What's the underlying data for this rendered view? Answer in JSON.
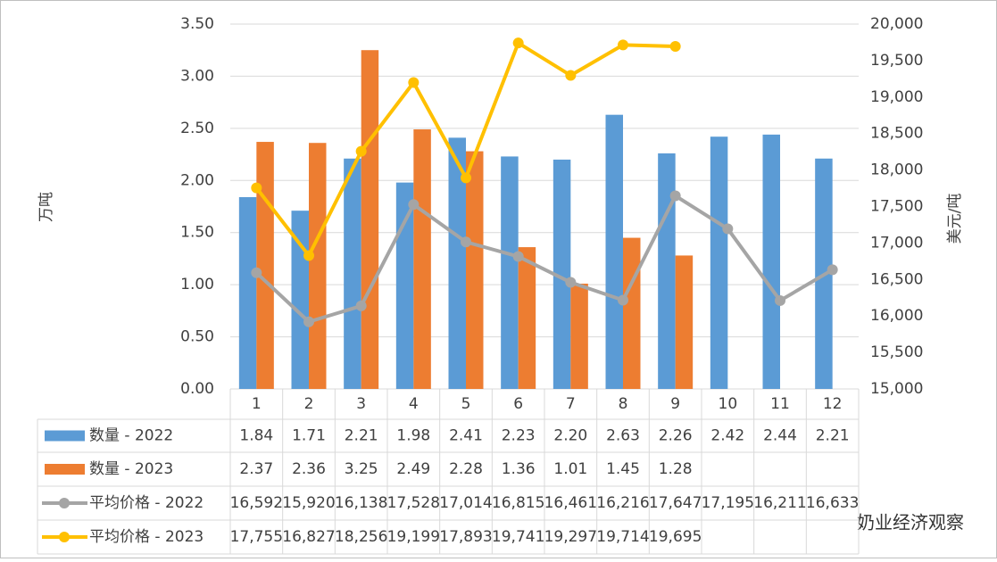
{
  "chart_data": {
    "type": "bar",
    "categories": [
      "1",
      "2",
      "3",
      "4",
      "5",
      "6",
      "7",
      "8",
      "9",
      "10",
      "11",
      "12"
    ],
    "ylabel": "万吨",
    "y2label": "美元/吨",
    "ylim": [
      0,
      3.5
    ],
    "yticks": [
      {
        "value": 0,
        "label": "0.00"
      },
      {
        "value": 0.5,
        "label": "0.50"
      },
      {
        "value": 1,
        "label": "1.00"
      },
      {
        "value": 1.5,
        "label": "1.50"
      },
      {
        "value": 2,
        "label": "2.00"
      },
      {
        "value": 2.5,
        "label": "2.50"
      },
      {
        "value": 3,
        "label": "3.00"
      },
      {
        "value": 3.5,
        "label": "3.50"
      }
    ],
    "y2lim": [
      15000,
      20000
    ],
    "y2ticks": [
      {
        "value": 15000,
        "label": "15,000"
      },
      {
        "value": 15500,
        "label": "15,500"
      },
      {
        "value": 16000,
        "label": "16,000"
      },
      {
        "value": 16500,
        "label": "16,500"
      },
      {
        "value": 17000,
        "label": "17,000"
      },
      {
        "value": 17500,
        "label": "17,500"
      },
      {
        "value": 18000,
        "label": "18,000"
      },
      {
        "value": 18500,
        "label": "18,500"
      },
      {
        "value": 19000,
        "label": "19,000"
      },
      {
        "value": 19500,
        "label": "19,500"
      },
      {
        "value": 20000,
        "label": "20,000"
      }
    ],
    "grid": true,
    "series": [
      {
        "name": "数量 - 2022",
        "type": "bar",
        "color": "#5b9bd5",
        "values": [
          1.84,
          1.71,
          2.21,
          1.98,
          2.41,
          2.23,
          2.2,
          2.63,
          2.26,
          2.42,
          2.44,
          2.21
        ],
        "value_labels": [
          "1.84",
          "1.71",
          "2.21",
          "1.98",
          "2.41",
          "2.23",
          "2.20",
          "2.63",
          "2.26",
          "2.42",
          "2.44",
          "2.21"
        ]
      },
      {
        "name": "数量 - 2023",
        "type": "bar",
        "color": "#ed7d31",
        "values": [
          2.37,
          2.36,
          3.25,
          2.49,
          2.28,
          1.36,
          1.01,
          1.45,
          1.28,
          null,
          null,
          null
        ]
      },
      {
        "name": "平均价格 - 2022",
        "type": "line",
        "axis": "y2",
        "color": "#a5a5a5",
        "values": [
          16592,
          15920,
          16138,
          17528,
          17014,
          16815,
          16461,
          16216,
          17647,
          17195,
          16211,
          16633
        ],
        "value_labels": [
          "16,592",
          "15,920",
          "16,138",
          "17,528",
          "17,014",
          "16,815",
          "16,461",
          "16,216",
          "17,647",
          "17,195",
          "16,211",
          "16,633"
        ]
      },
      {
        "name": "平均价格 - 2023",
        "type": "line",
        "axis": "y2",
        "color": "#ffc000",
        "values": [
          17755,
          16827,
          18256,
          19199,
          17893,
          19741,
          19297,
          19714,
          19695,
          null,
          null,
          null
        ],
        "value_labels": [
          "17,755",
          "16,827",
          "18,256",
          "19,199",
          "17,893",
          "19,741",
          "19,297",
          "19,714",
          "19,695",
          null,
          null,
          null
        ]
      }
    ]
  },
  "watermark": "奶业经济观察"
}
